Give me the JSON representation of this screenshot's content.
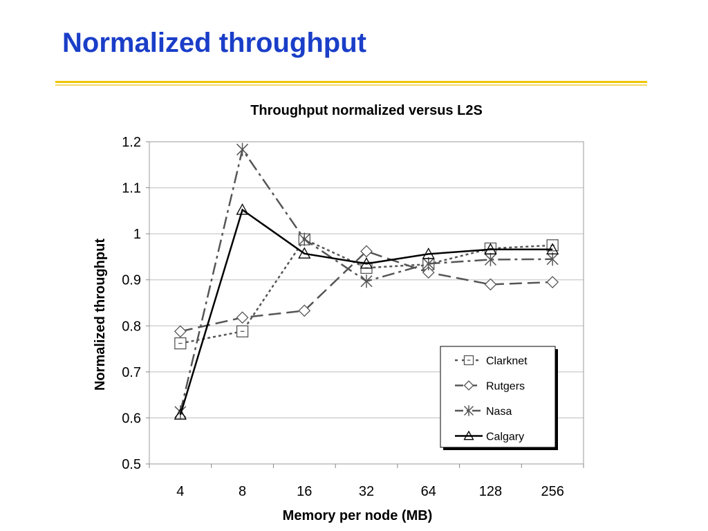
{
  "slide": {
    "title": "Normalized throughput"
  },
  "colors": {
    "title": "#1a3ec8",
    "rule": "#f0c400"
  },
  "chart_data": {
    "type": "line",
    "title": "Throughput normalized versus L2S",
    "xlabel": "Memory per node (MB)",
    "ylabel": "Normalized throughput",
    "categories": [
      "4",
      "8",
      "16",
      "32",
      "64",
      "128",
      "256"
    ],
    "ylim": [
      0.5,
      1.2
    ],
    "yticks": [
      "0.5",
      "0.6",
      "0.7",
      "0.8",
      "0.9",
      "1",
      "1.1",
      "1.2"
    ],
    "grid": true,
    "legend_position": "bottom-right",
    "series": [
      {
        "name": "Clarknet",
        "marker": "square",
        "dash": "short-dot",
        "color": "#555555",
        "width": 2.5,
        "values": [
          0.762,
          0.788,
          0.988,
          0.926,
          0.934,
          0.968,
          0.975
        ]
      },
      {
        "name": "Rutgers",
        "marker": "diamond",
        "dash": "long-dash",
        "color": "#555555",
        "width": 2.5,
        "values": [
          0.788,
          0.818,
          0.833,
          0.962,
          0.916,
          0.89,
          0.895
        ]
      },
      {
        "name": "Nasa",
        "marker": "asterisk",
        "dash": "dash-dot",
        "color": "#555555",
        "width": 2.5,
        "values": [
          0.613,
          1.183,
          0.988,
          0.897,
          0.935,
          0.944,
          0.945
        ]
      },
      {
        "name": "Calgary",
        "marker": "triangle",
        "dash": "solid",
        "color": "#000000",
        "width": 2.5,
        "values": [
          0.607,
          1.052,
          0.957,
          0.935,
          0.956,
          0.966,
          0.966
        ]
      }
    ]
  }
}
